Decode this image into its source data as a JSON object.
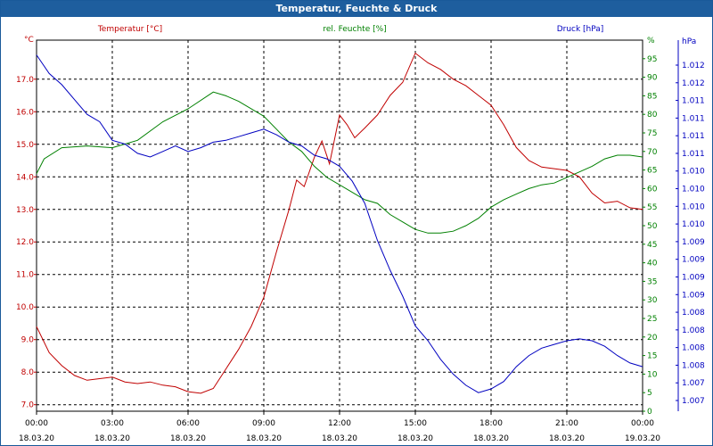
{
  "window": {
    "title": "Temperatur, Feuchte & Druck"
  },
  "chart_data": {
    "type": "line",
    "title": "Temperatur, Feuchte & Druck",
    "x_ticks": [
      {
        "time": "00:00",
        "date": "18.03.20"
      },
      {
        "time": "03:00",
        "date": "18.03.20"
      },
      {
        "time": "06:00",
        "date": "18.03.20"
      },
      {
        "time": "09:00",
        "date": "18.03.20"
      },
      {
        "time": "12:00",
        "date": "18.03.20"
      },
      {
        "time": "15:00",
        "date": "18.03.20"
      },
      {
        "time": "18:00",
        "date": "18.03.20"
      },
      {
        "time": "21:00",
        "date": "18.03.20"
      },
      {
        "time": "00:00",
        "date": "19.03.20"
      }
    ],
    "xlim": [
      0,
      24
    ],
    "grid": true,
    "axes": {
      "temperature": {
        "unit_label": "°C",
        "ylim": [
          6.8,
          18.2
        ],
        "ticks": [
          "7.0",
          "8.0",
          "9.0",
          "10.0",
          "11.0",
          "12.0",
          "13.0",
          "14.0",
          "15.0",
          "16.0",
          "17.0"
        ],
        "color": "#c00000"
      },
      "humidity": {
        "unit_label": "%",
        "ylim": [
          0,
          100
        ],
        "ticks": [
          "0",
          "5",
          "10",
          "15",
          "20",
          "25",
          "30",
          "35",
          "40",
          "45",
          "50",
          "55",
          "60",
          "65",
          "70",
          "75",
          "80",
          "85",
          "90",
          "95"
        ],
        "color": "#008000"
      },
      "pressure": {
        "unit_label": "hPa",
        "ticks": [
          "1.007",
          "1.007",
          "1.008",
          "1.008",
          "1.008",
          "1.008",
          "1.009",
          "1.009",
          "1.009",
          "1.009",
          "1.010",
          "1.010",
          "1.010",
          "1.010",
          "1.011",
          "1.011",
          "1.011",
          "1.011",
          "1.012",
          "1.012"
        ],
        "color": "#0000c0"
      }
    },
    "series": [
      {
        "name": "Temperatur [°C]",
        "axis": "temperature",
        "color": "#c00000",
        "points": [
          [
            0,
            9.4
          ],
          [
            0.5,
            8.6
          ],
          [
            1,
            8.2
          ],
          [
            1.5,
            7.9
          ],
          [
            2,
            7.75
          ],
          [
            2.5,
            7.8
          ],
          [
            3,
            7.85
          ],
          [
            3.5,
            7.7
          ],
          [
            4,
            7.65
          ],
          [
            4.5,
            7.7
          ],
          [
            5,
            7.6
          ],
          [
            5.5,
            7.55
          ],
          [
            6,
            7.4
          ],
          [
            6.5,
            7.35
          ],
          [
            7,
            7.5
          ],
          [
            7.5,
            8.1
          ],
          [
            8,
            8.7
          ],
          [
            8.5,
            9.4
          ],
          [
            9,
            10.3
          ],
          [
            9.5,
            11.7
          ],
          [
            10,
            13.0
          ],
          [
            10.3,
            13.9
          ],
          [
            10.6,
            13.7
          ],
          [
            11,
            14.6
          ],
          [
            11.3,
            15.1
          ],
          [
            11.6,
            14.4
          ],
          [
            12,
            15.9
          ],
          [
            12.3,
            15.6
          ],
          [
            12.6,
            15.2
          ],
          [
            13,
            15.5
          ],
          [
            13.5,
            15.9
          ],
          [
            14,
            16.5
          ],
          [
            14.5,
            16.9
          ],
          [
            15,
            17.8
          ],
          [
            15.5,
            17.5
          ],
          [
            16,
            17.3
          ],
          [
            16.5,
            17.0
          ],
          [
            17,
            16.8
          ],
          [
            17.5,
            16.5
          ],
          [
            18,
            16.2
          ],
          [
            18.5,
            15.6
          ],
          [
            19,
            14.9
          ],
          [
            19.5,
            14.5
          ],
          [
            20,
            14.3
          ],
          [
            20.5,
            14.25
          ],
          [
            21,
            14.2
          ],
          [
            21.5,
            14.0
          ],
          [
            22,
            13.5
          ],
          [
            22.5,
            13.2
          ],
          [
            23,
            13.25
          ],
          [
            23.5,
            13.05
          ],
          [
            24,
            13.0
          ]
        ]
      },
      {
        "name": "rel. Feuchte [%]",
        "axis": "humidity",
        "color": "#008000",
        "points": [
          [
            0,
            64
          ],
          [
            0.3,
            68
          ],
          [
            1,
            71
          ],
          [
            2,
            71.5
          ],
          [
            3,
            71
          ],
          [
            4,
            73
          ],
          [
            5,
            78
          ],
          [
            6,
            81.5
          ],
          [
            7,
            86
          ],
          [
            7.5,
            85
          ],
          [
            8,
            83.5
          ],
          [
            9,
            79.5
          ],
          [
            9.5,
            76
          ],
          [
            10,
            72.5
          ],
          [
            10.5,
            70
          ],
          [
            11,
            66
          ],
          [
            11.5,
            63
          ],
          [
            12,
            61
          ],
          [
            12.5,
            59
          ],
          [
            13,
            57
          ],
          [
            13.5,
            56
          ],
          [
            14,
            53
          ],
          [
            14.5,
            51
          ],
          [
            15,
            49
          ],
          [
            15.5,
            48
          ],
          [
            16,
            48
          ],
          [
            16.5,
            48.5
          ],
          [
            17,
            50
          ],
          [
            17.5,
            52
          ],
          [
            18,
            55
          ],
          [
            18.5,
            57
          ],
          [
            19,
            58.5
          ],
          [
            19.5,
            60
          ],
          [
            20,
            61
          ],
          [
            20.5,
            61.5
          ],
          [
            21,
            63
          ],
          [
            21.5,
            64.5
          ],
          [
            22,
            66
          ],
          [
            22.5,
            68
          ],
          [
            23,
            69
          ],
          [
            23.5,
            69
          ],
          [
            24,
            68.5
          ]
        ]
      },
      {
        "name": "Druck [hPa]",
        "axis": "pressure",
        "color": "#0000c0",
        "points": [
          [
            0,
            96
          ],
          [
            0.5,
            91
          ],
          [
            1,
            88
          ],
          [
            1.5,
            84
          ],
          [
            2,
            80
          ],
          [
            2.5,
            78
          ],
          [
            3,
            73
          ],
          [
            3.5,
            72
          ],
          [
            4,
            69.5
          ],
          [
            4.5,
            68.5
          ],
          [
            5,
            70
          ],
          [
            5.5,
            71.5
          ],
          [
            6,
            70
          ],
          [
            6.5,
            71
          ],
          [
            7,
            72.5
          ],
          [
            7.5,
            73
          ],
          [
            8,
            74
          ],
          [
            8.5,
            75
          ],
          [
            9,
            76
          ],
          [
            9.5,
            74.5
          ],
          [
            10,
            72.5
          ],
          [
            10.5,
            71.5
          ],
          [
            11,
            69
          ],
          [
            11.5,
            68
          ],
          [
            12,
            66
          ],
          [
            12.5,
            62
          ],
          [
            13,
            56
          ],
          [
            13.5,
            46
          ],
          [
            14,
            38
          ],
          [
            14.5,
            31
          ],
          [
            15,
            23
          ],
          [
            15.5,
            19
          ],
          [
            16,
            14
          ],
          [
            16.5,
            10
          ],
          [
            17,
            7
          ],
          [
            17.5,
            5
          ],
          [
            18,
            6
          ],
          [
            18.5,
            8
          ],
          [
            19,
            12
          ],
          [
            19.5,
            15
          ],
          [
            20,
            17
          ],
          [
            20.5,
            18
          ],
          [
            21,
            19
          ],
          [
            21.5,
            19.5
          ],
          [
            22,
            19
          ],
          [
            22.5,
            17.5
          ],
          [
            23,
            15
          ],
          [
            23.5,
            13
          ],
          [
            24,
            12
          ]
        ]
      }
    ]
  }
}
